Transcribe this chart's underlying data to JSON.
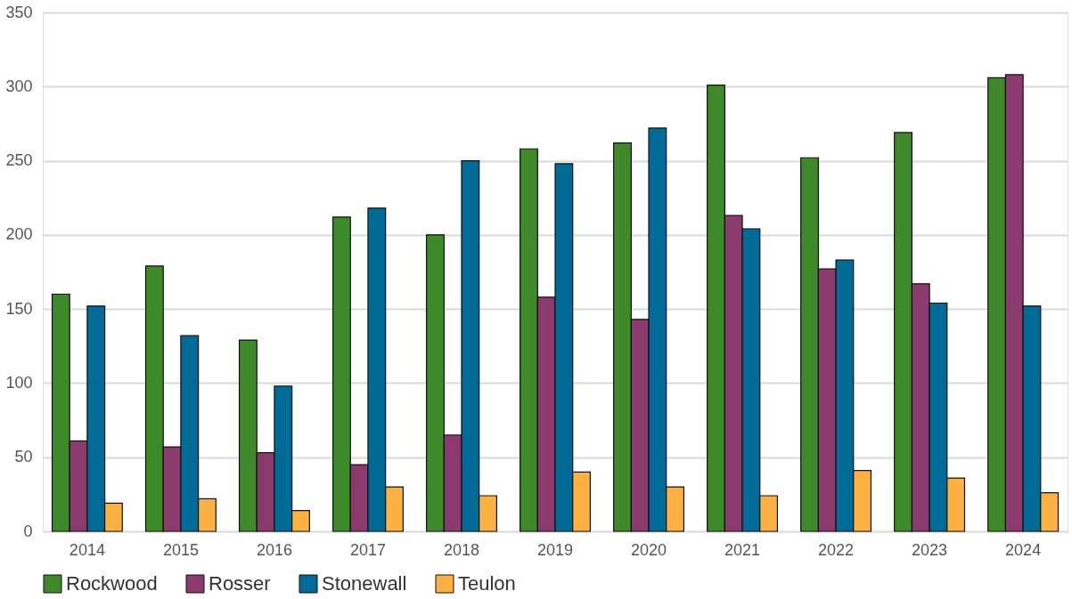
{
  "chart_data": {
    "type": "bar",
    "categories": [
      "2014",
      "2015",
      "2016",
      "2017",
      "2018",
      "2019",
      "2020",
      "2021",
      "2022",
      "2023",
      "2024"
    ],
    "series": [
      {
        "name": "Rockwood",
        "color": "#3e8a2a",
        "values": [
          160,
          179,
          129,
          212,
          200,
          258,
          262,
          301,
          252,
          269,
          306
        ]
      },
      {
        "name": "Rosser",
        "color": "#8b3a6e",
        "values": [
          61,
          57,
          53,
          45,
          65,
          158,
          143,
          213,
          177,
          167,
          308
        ]
      },
      {
        "name": "Stonewall",
        "color": "#006b96",
        "values": [
          152,
          132,
          98,
          218,
          250,
          248,
          272,
          204,
          183,
          154,
          152
        ]
      },
      {
        "name": "Teulon",
        "color": "#fdb143",
        "values": [
          19,
          22,
          14,
          30,
          24,
          40,
          30,
          24,
          41,
          36,
          26
        ]
      }
    ],
    "ylim": [
      0,
      350
    ],
    "yticks": [
      0,
      50,
      100,
      150,
      200,
      250,
      300,
      350
    ],
    "grid": "y",
    "legend": "bottom"
  }
}
